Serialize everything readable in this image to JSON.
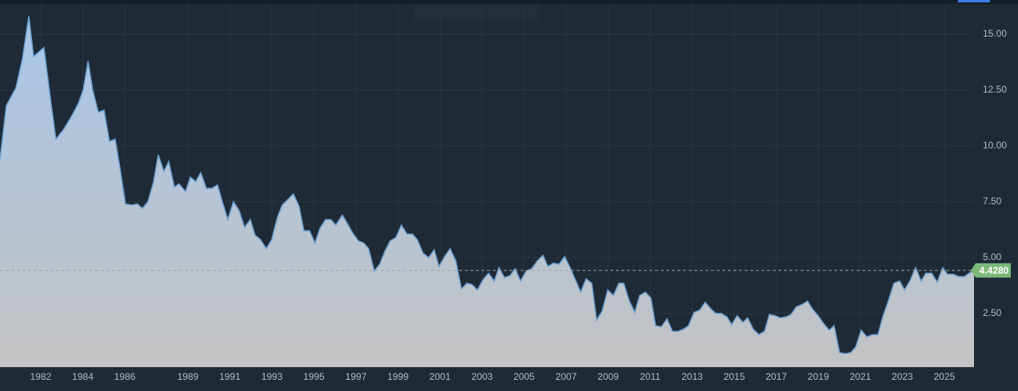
{
  "chart_data": {
    "type": "area",
    "x": [
      1980.06,
      1980.36,
      1980.82,
      1981.13,
      1981.43,
      1981.66,
      1982.15,
      1982.46,
      1982.72,
      1983.1,
      1983.48,
      1983.79,
      1984.02,
      1984.25,
      1984.47,
      1984.74,
      1985.01,
      1985.27,
      1985.54,
      1985.77,
      1986.03,
      1986.34,
      1986.6,
      1986.83,
      1987.1,
      1987.37,
      1987.59,
      1987.86,
      1988.09,
      1988.36,
      1988.58,
      1988.89,
      1989.12,
      1989.38,
      1989.61,
      1989.88,
      1990.14,
      1990.41,
      1990.64,
      1990.9,
      1991.17,
      1991.44,
      1991.7,
      1991.97,
      1992.2,
      1992.46,
      1992.73,
      1992.99,
      1993.26,
      1993.49,
      1993.76,
      1994.02,
      1994.29,
      1994.52,
      1994.79,
      1995.05,
      1995.28,
      1995.55,
      1995.81,
      1996.04,
      1996.35,
      1996.57,
      1996.84,
      1997.11,
      1997.37,
      1997.6,
      1997.87,
      1998.13,
      1998.36,
      1998.63,
      1998.9,
      1999.16,
      1999.43,
      1999.69,
      1999.92,
      2000.19,
      2000.46,
      2000.72,
      2000.95,
      2001.22,
      2001.48,
      2001.75,
      2002.02,
      2002.28,
      2002.51,
      2002.78,
      2003.04,
      2003.31,
      2003.58,
      2003.8,
      2004.07,
      2004.34,
      2004.57,
      2004.83,
      2005.1,
      2005.36,
      2005.63,
      2005.9,
      2006.13,
      2006.39,
      2006.66,
      2006.93,
      2007.19,
      2007.42,
      2007.69,
      2007.95,
      2008.22,
      2008.45,
      2008.71,
      2008.98,
      2009.25,
      2009.51,
      2009.74,
      2010.01,
      2010.27,
      2010.5,
      2010.77,
      2011.03,
      2011.26,
      2011.53,
      2011.8,
      2012.06,
      2012.33,
      2012.59,
      2012.82,
      2013.09,
      2013.36,
      2013.62,
      2013.89,
      2014.12,
      2014.38,
      2014.65,
      2014.88,
      2015.14,
      2015.41,
      2015.64,
      2015.9,
      2016.17,
      2016.44,
      2016.67,
      2016.93,
      2017.2,
      2017.47,
      2017.7,
      2017.96,
      2018.23,
      2018.49,
      2018.72,
      2018.99,
      2019.25,
      2019.52,
      2019.75,
      2020.01,
      2020.28,
      2020.55,
      2020.78,
      2021.04,
      2021.31,
      2021.57,
      2021.84,
      2022.07,
      2022.33,
      2022.6,
      2022.87,
      2023.1,
      2023.36,
      2023.63,
      2023.89,
      2024.12,
      2024.39,
      2024.66,
      2024.92,
      2025.15,
      2025.42,
      2025.68,
      2025.95,
      2026.18,
      2026.41
    ],
    "values": [
      9.4,
      11.8,
      12.6,
      13.9,
      15.8,
      14.0,
      14.4,
      12.1,
      10.3,
      10.75,
      11.35,
      11.9,
      12.5,
      13.8,
      12.5,
      11.5,
      11.6,
      10.2,
      10.3,
      9.0,
      7.4,
      7.35,
      7.4,
      7.2,
      7.5,
      8.4,
      9.6,
      8.85,
      9.3,
      8.15,
      8.3,
      7.95,
      8.6,
      8.4,
      8.8,
      8.1,
      8.1,
      8.25,
      7.5,
      6.7,
      7.5,
      7.1,
      6.35,
      6.7,
      6.0,
      5.8,
      5.4,
      5.8,
      6.8,
      7.35,
      7.6,
      7.85,
      7.3,
      6.2,
      6.2,
      5.65,
      6.3,
      6.7,
      6.7,
      6.45,
      6.9,
      6.55,
      6.1,
      5.75,
      5.65,
      5.4,
      4.4,
      4.7,
      5.25,
      5.75,
      5.9,
      6.45,
      6.05,
      6.05,
      5.8,
      5.2,
      5.0,
      5.35,
      4.6,
      5.05,
      5.4,
      4.85,
      3.6,
      3.85,
      3.8,
      3.55,
      4.0,
      4.3,
      3.95,
      4.55,
      4.1,
      4.2,
      4.5,
      3.95,
      4.4,
      4.5,
      4.85,
      5.1,
      4.6,
      4.75,
      4.7,
      5.05,
      4.55,
      4.05,
      3.45,
      4.05,
      3.85,
      2.2,
      2.6,
      3.55,
      3.3,
      3.85,
      3.85,
      3.05,
      2.55,
      3.3,
      3.45,
      3.2,
      1.95,
      1.9,
      2.25,
      1.7,
      1.7,
      1.8,
      1.95,
      2.55,
      2.65,
      3.0,
      2.7,
      2.5,
      2.5,
      2.35,
      2.0,
      2.4,
      2.1,
      2.3,
      1.8,
      1.55,
      1.7,
      2.45,
      2.4,
      2.3,
      2.35,
      2.45,
      2.8,
      2.9,
      3.05,
      2.7,
      2.4,
      2.05,
      1.75,
      1.95,
      0.75,
      0.7,
      0.75,
      1.0,
      1.75,
      1.45,
      1.55,
      1.55,
      2.35,
      3.05,
      3.85,
      3.95,
      3.55,
      3.95,
      4.55,
      3.95,
      4.3,
      4.3,
      3.9,
      4.55,
      4.25,
      4.25,
      4.15,
      4.15,
      4.3,
      4.428
    ],
    "color": "#6a9fd2",
    "area_gradient": [
      "#a8c6e8",
      "#c3c3c3"
    ],
    "xlim": [
      1980.06,
      2026.41
    ],
    "xticks": [
      1982,
      1984,
      1986,
      1989,
      1991,
      1993,
      1995,
      1997,
      1999,
      2001,
      2003,
      2005,
      2007,
      2009,
      2011,
      2013,
      2015,
      2017,
      2019,
      2021,
      2023,
      2025
    ],
    "ylim": [
      0.1,
      16.35
    ],
    "yticks": [
      {
        "value": 2.5,
        "label": "2.50"
      },
      {
        "value": 5,
        "label": "5.00"
      },
      {
        "value": 7.5,
        "label": "7.50"
      },
      {
        "value": 10,
        "label": "10.00"
      },
      {
        "value": 12.5,
        "label": "12.50"
      },
      {
        "value": 15,
        "label": "15.00"
      }
    ],
    "grid": true,
    "price_line": {
      "value": 4.428,
      "label": "4.4280",
      "color": "#7cb87a"
    }
  }
}
